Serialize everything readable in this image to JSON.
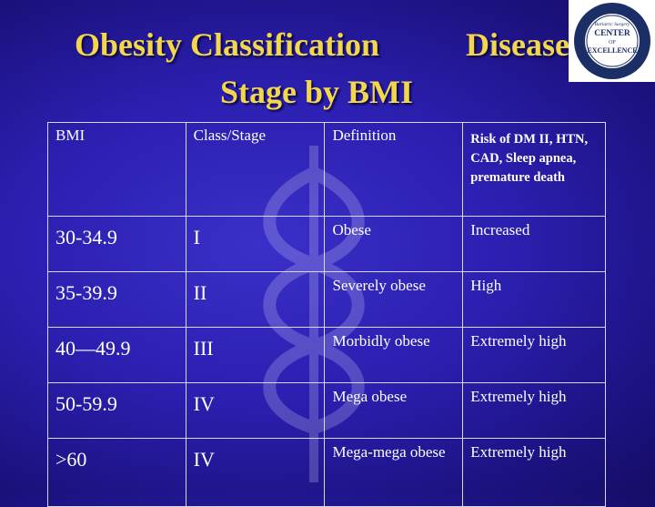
{
  "title": {
    "line1_left": "Obesity Classification",
    "line1_right": "Disease",
    "line2": "Stage by BMI"
  },
  "logo": {
    "text_center": "CENTER",
    "text_of": "OF",
    "text_excellence": "EXCELLENCE",
    "text_program": "Bariatric Surgery"
  },
  "table": {
    "headers": [
      "BMI",
      "Class/Stage",
      "Definition",
      "Risk of DM II, HTN, CAD, Sleep apnea, premature death"
    ],
    "rows": [
      {
        "bmi": "30-34.9",
        "stage": "I",
        "definition": "Obese",
        "risk": "Increased"
      },
      {
        "bmi": "35-39.9",
        "stage": "II",
        "definition": "Severely obese",
        "risk": "High"
      },
      {
        "bmi": "40—49.9",
        "stage": "III",
        "definition": "Morbidly obese",
        "risk": "Extremely high"
      },
      {
        "bmi": "50-59.9",
        "stage": "IV",
        "definition": "Mega obese",
        "risk": "Extremely high"
      },
      {
        "bmi": ">60",
        "stage": "IV",
        "definition": "Mega-mega obese",
        "risk": "Extremely high"
      }
    ]
  },
  "colors": {
    "title": "#f2d64b",
    "background": "#2b1fb0",
    "text": "#ffffff",
    "border": "#d8d8ec"
  }
}
